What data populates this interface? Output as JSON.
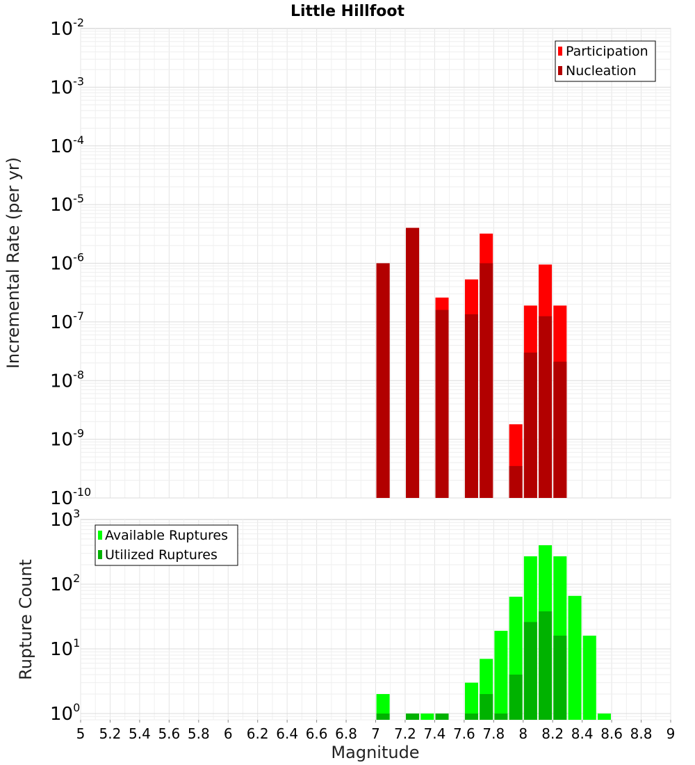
{
  "chart_data": [
    {
      "type": "bar",
      "title": "Little Hillfoot",
      "ylabel": "Incremental Rate (per yr)",
      "xlabel": "",
      "yscale": "log",
      "ylim": [
        1e-10,
        0.01
      ],
      "xlim": [
        5,
        9
      ],
      "ytick_exponents": [
        "-2",
        "-3",
        "-4",
        "-5",
        "-6",
        "-7",
        "-8",
        "-9",
        "-10"
      ],
      "legend_position": "top-right",
      "series": [
        {
          "name": "Participation",
          "color": "#ff0000",
          "x": [
            7.05,
            7.25,
            7.45,
            7.65,
            7.75,
            7.95,
            8.05,
            8.15,
            8.25
          ],
          "values": [
            1e-06,
            4e-06,
            2.6e-07,
            5.3e-07,
            3.2e-06,
            1.8e-09,
            1.9e-07,
            9.5e-07,
            1.9e-07
          ]
        },
        {
          "name": "Nucleation",
          "color": "#b20000",
          "x": [
            7.05,
            7.25,
            7.45,
            7.65,
            7.75,
            7.95,
            8.05,
            8.15,
            8.25
          ],
          "values": [
            1e-06,
            4e-06,
            1.6e-07,
            1.35e-07,
            1e-06,
            3.5e-10,
            3e-08,
            1.25e-07,
            2.1e-08
          ]
        }
      ]
    },
    {
      "type": "bar",
      "title": "",
      "ylabel": "Rupture Count",
      "xlabel": "Magnitude",
      "yscale": "log",
      "ylim": [
        0.8,
        1000
      ],
      "xlim": [
        5,
        9
      ],
      "ytick_exponents": [
        "3",
        "2",
        "1",
        "0"
      ],
      "xticks": [
        "5",
        "5.2",
        "5.4",
        "5.6",
        "5.8",
        "6",
        "6.2",
        "6.4",
        "6.6",
        "6.8",
        "7",
        "7.2",
        "7.4",
        "7.6",
        "7.8",
        "8",
        "8.2",
        "8.4",
        "8.6",
        "8.8",
        "9"
      ],
      "legend_position": "top-left",
      "series": [
        {
          "name": "Available Ruptures",
          "color": "#00ff00",
          "x": [
            7.05,
            7.25,
            7.35,
            7.45,
            7.65,
            7.75,
            7.85,
            7.95,
            8.05,
            8.15,
            8.25,
            8.35,
            8.45,
            8.55
          ],
          "values": [
            2,
            1,
            1,
            1,
            3,
            7,
            19,
            64,
            270,
            400,
            270,
            66,
            16,
            1
          ]
        },
        {
          "name": "Utilized Ruptures",
          "color": "#00b200",
          "x": [
            7.05,
            7.25,
            7.35,
            7.45,
            7.65,
            7.75,
            7.85,
            7.95,
            8.05,
            8.15,
            8.25
          ],
          "values": [
            1,
            1,
            0,
            1,
            1,
            2,
            1,
            4,
            26,
            38,
            16
          ]
        }
      ]
    }
  ]
}
